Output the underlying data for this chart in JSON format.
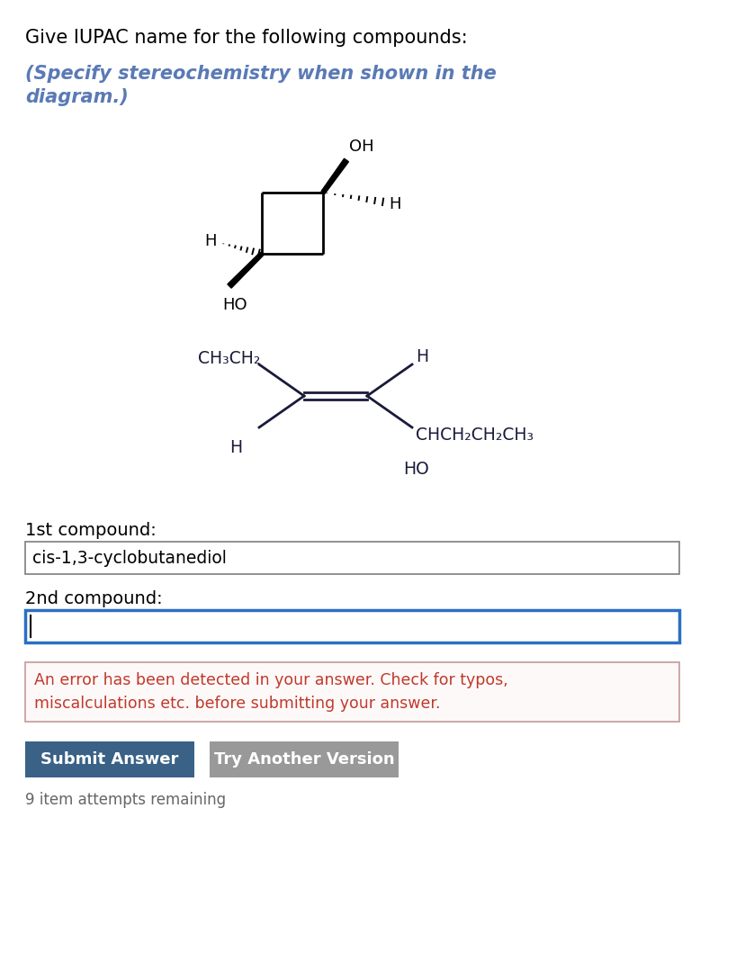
{
  "title_text": "Give IUPAC name for the following compounds:",
  "subtitle_text": "(Specify stereochemistry when shown in the\ndiagram.)",
  "label_1st": "1st compound:",
  "label_2nd": "2nd compound:",
  "answer_1st": "cis-1,3-cyclobutanediol",
  "answer_2nd": "",
  "error_msg": "An error has been detected in your answer. Check for typos,\nmiscalculations etc. before submitting your answer.",
  "btn_submit": "Submit Answer",
  "btn_try": "Try Another Version",
  "footer": "9 item attempts remaining",
  "bg_color": "#ffffff",
  "title_color": "#000000",
  "subtitle_color": "#5a7ab5",
  "error_color": "#c0392b",
  "error_bg": "#fef9f9",
  "error_border": "#c8a0a0",
  "btn_submit_color": "#3a6186",
  "btn_try_color": "#999999",
  "input_border_active": "#2a6fc4",
  "input_border_normal": "#888888",
  "footer_color": "#666666"
}
